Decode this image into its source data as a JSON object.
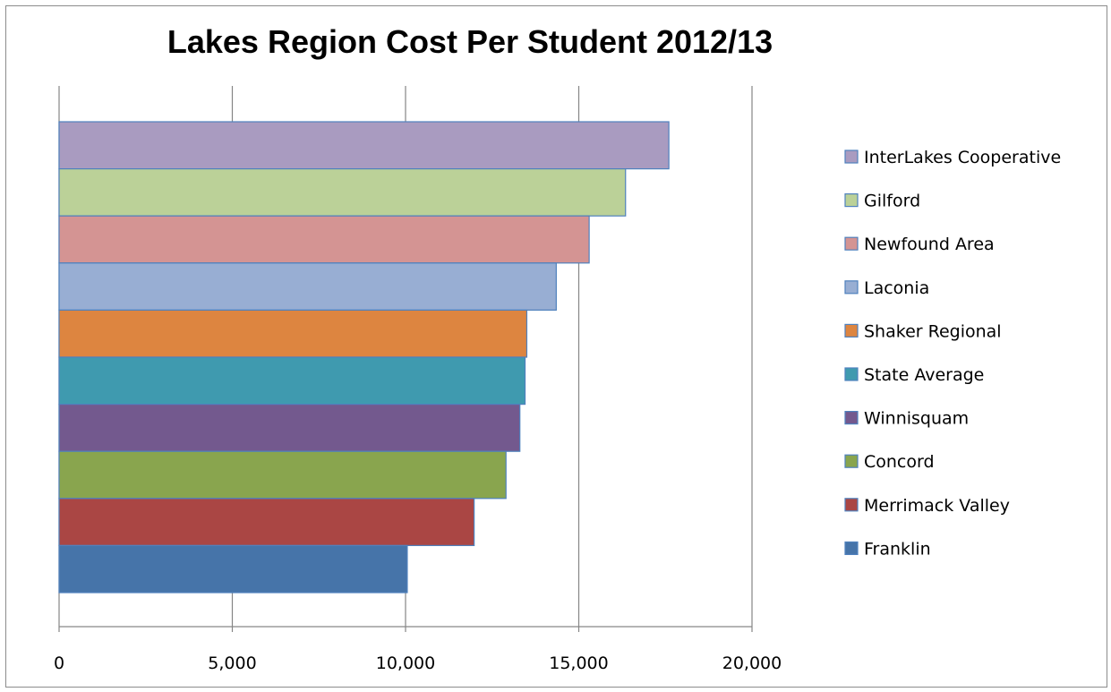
{
  "chart_data": {
    "type": "bar",
    "orientation": "horizontal",
    "title": "Lakes Region Cost Per Student 2012/13",
    "xlabel": "",
    "ylabel": "",
    "xlim": [
      0,
      20000
    ],
    "ticks": [
      0,
      5000,
      10000,
      15000,
      20000
    ],
    "tick_labels": [
      "0",
      "5,000",
      "10,000",
      "15,000",
      "20,000"
    ],
    "grid": "vertical",
    "legend_position": "right",
    "series": [
      {
        "name": "InterLakes Cooperative",
        "value": 17600,
        "color": "#A99BC0"
      },
      {
        "name": "Gilford",
        "value": 16350,
        "color": "#BBD198"
      },
      {
        "name": "Newfound Area",
        "value": 15300,
        "color": "#D49493"
      },
      {
        "name": "Laconia",
        "value": 14350,
        "color": "#98AED3"
      },
      {
        "name": "Shaker Regional",
        "value": 13500,
        "color": "#DD8540"
      },
      {
        "name": "State Average",
        "value": 13450,
        "color": "#3F9AAF"
      },
      {
        "name": "Winnisquam",
        "value": 13300,
        "color": "#73598E"
      },
      {
        "name": "Concord",
        "value": 12900,
        "color": "#89A54E"
      },
      {
        "name": "Merrimack Valley",
        "value": 11980,
        "color": "#AA4644"
      },
      {
        "name": "Franklin",
        "value": 10050,
        "color": "#4674A9"
      }
    ]
  }
}
